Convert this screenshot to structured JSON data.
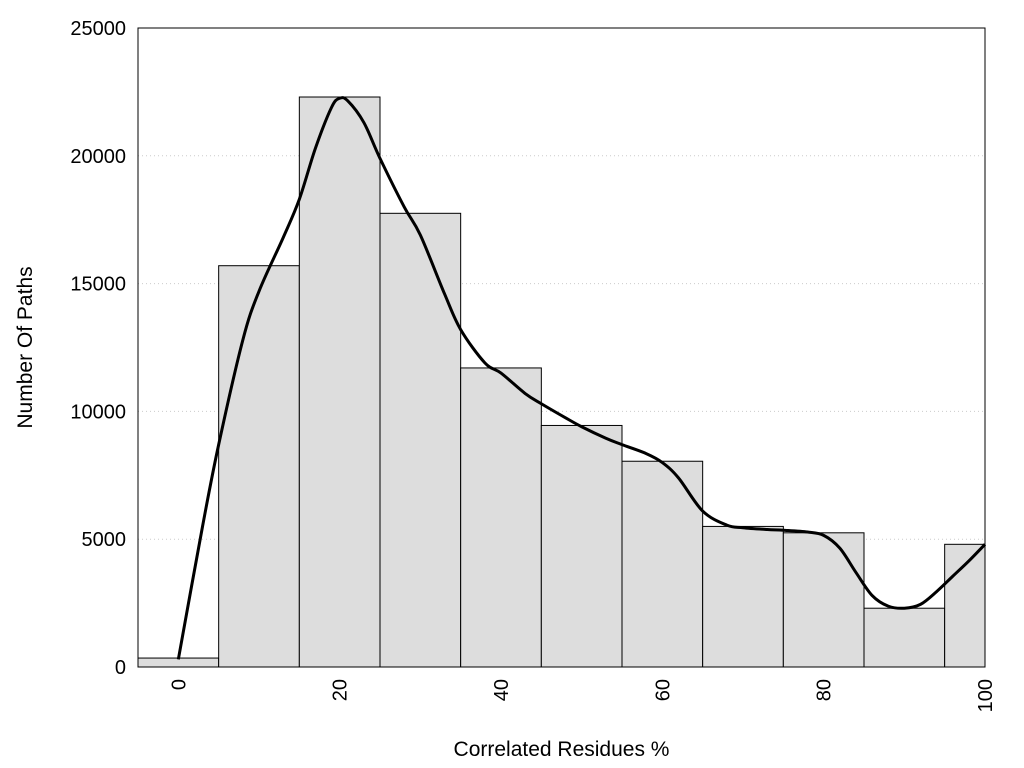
{
  "chart_data": {
    "type": "bar",
    "xlabel": "Correlated Residues %",
    "ylabel": "Number Of Paths",
    "xlim": [
      -5,
      100
    ],
    "ylim": [
      0,
      25000
    ],
    "x_ticks": [
      0,
      20,
      40,
      60,
      80,
      100
    ],
    "y_ticks": [
      0,
      5000,
      10000,
      15000,
      20000,
      25000
    ],
    "grid": "horizontal dotted",
    "bins": [
      {
        "start": -5,
        "end": 5,
        "value": 350
      },
      {
        "start": 5,
        "end": 15,
        "value": 15700
      },
      {
        "start": 15,
        "end": 25,
        "value": 22300
      },
      {
        "start": 25,
        "end": 35,
        "value": 17750
      },
      {
        "start": 35,
        "end": 45,
        "value": 11700
      },
      {
        "start": 45,
        "end": 55,
        "value": 9450
      },
      {
        "start": 55,
        "end": 65,
        "value": 8050
      },
      {
        "start": 65,
        "end": 75,
        "value": 5500
      },
      {
        "start": 75,
        "end": 85,
        "value": 5250
      },
      {
        "start": 85,
        "end": 95,
        "value": 2300
      },
      {
        "start": 95,
        "end": 100,
        "value": 4800
      }
    ],
    "curve": {
      "x": [
        0,
        3,
        5,
        8,
        10,
        13,
        15,
        17,
        19,
        20,
        21,
        23,
        25,
        28,
        30,
        33,
        35,
        38,
        40,
        43,
        45,
        48,
        50,
        53,
        55,
        58,
        60,
        62,
        65,
        68,
        70,
        73,
        75,
        78,
        80,
        82,
        84,
        86,
        88,
        90,
        92,
        94,
        96,
        98,
        100
      ],
      "y": [
        300,
        5500,
        8700,
        12800,
        14700,
        16800,
        18300,
        20300,
        21900,
        22250,
        22150,
        21300,
        19900,
        18000,
        16900,
        14600,
        13200,
        11900,
        11500,
        10700,
        10300,
        9750,
        9400,
        8950,
        8700,
        8350,
        8000,
        7400,
        6100,
        5550,
        5450,
        5380,
        5350,
        5280,
        5150,
        4650,
        3700,
        2800,
        2380,
        2300,
        2450,
        2950,
        3550,
        4150,
        4800
      ],
      "color": "#000000"
    },
    "bar_fill": "#dddddd",
    "bar_stroke": "#000000"
  }
}
